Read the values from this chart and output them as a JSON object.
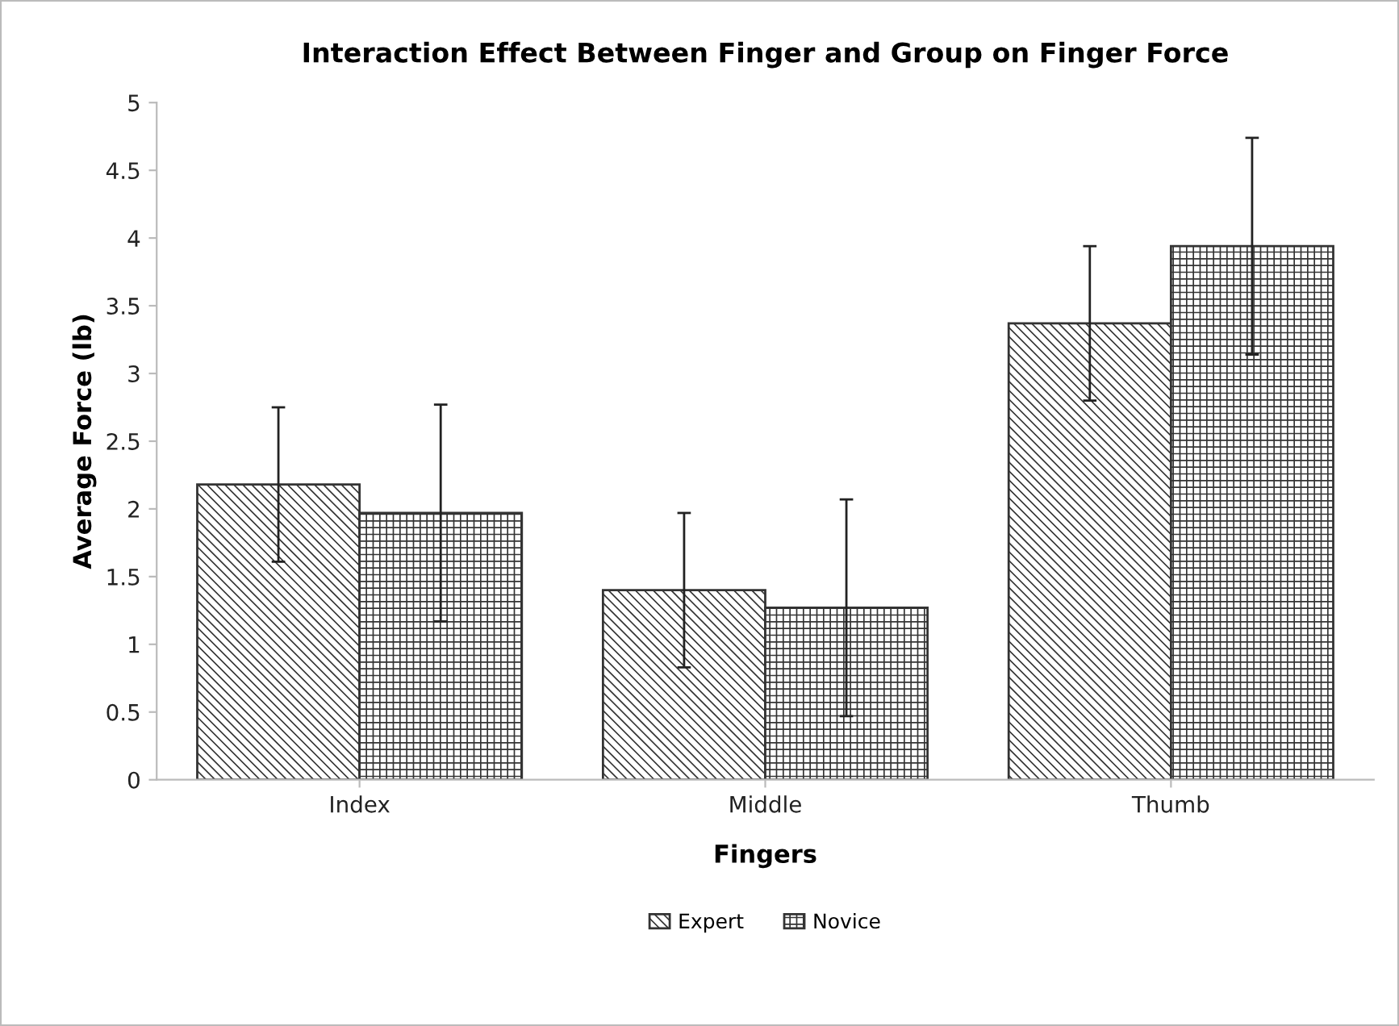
{
  "chart_data": {
    "type": "bar",
    "title": "Interaction Effect Between Finger and Group on Finger Force",
    "xlabel": "Fingers",
    "ylabel": "Average Force (lb)",
    "categories": [
      "Index",
      "Middle",
      "Thumb"
    ],
    "series": [
      {
        "name": "Expert",
        "color": "#333333",
        "values": [
          2.18,
          1.4,
          3.37
        ],
        "errors": [
          0.57,
          0.57,
          0.57
        ]
      },
      {
        "name": "Novice",
        "color": "#333333",
        "values": [
          1.97,
          1.27,
          3.94
        ],
        "errors": [
          0.8,
          0.8,
          0.8
        ]
      }
    ],
    "ylim": [
      0,
      5
    ],
    "yticks": [
      0,
      0.5,
      1,
      1.5,
      2,
      2.5,
      3,
      3.5,
      4,
      4.5,
      5
    ],
    "grid": false,
    "legend": "bottom"
  }
}
